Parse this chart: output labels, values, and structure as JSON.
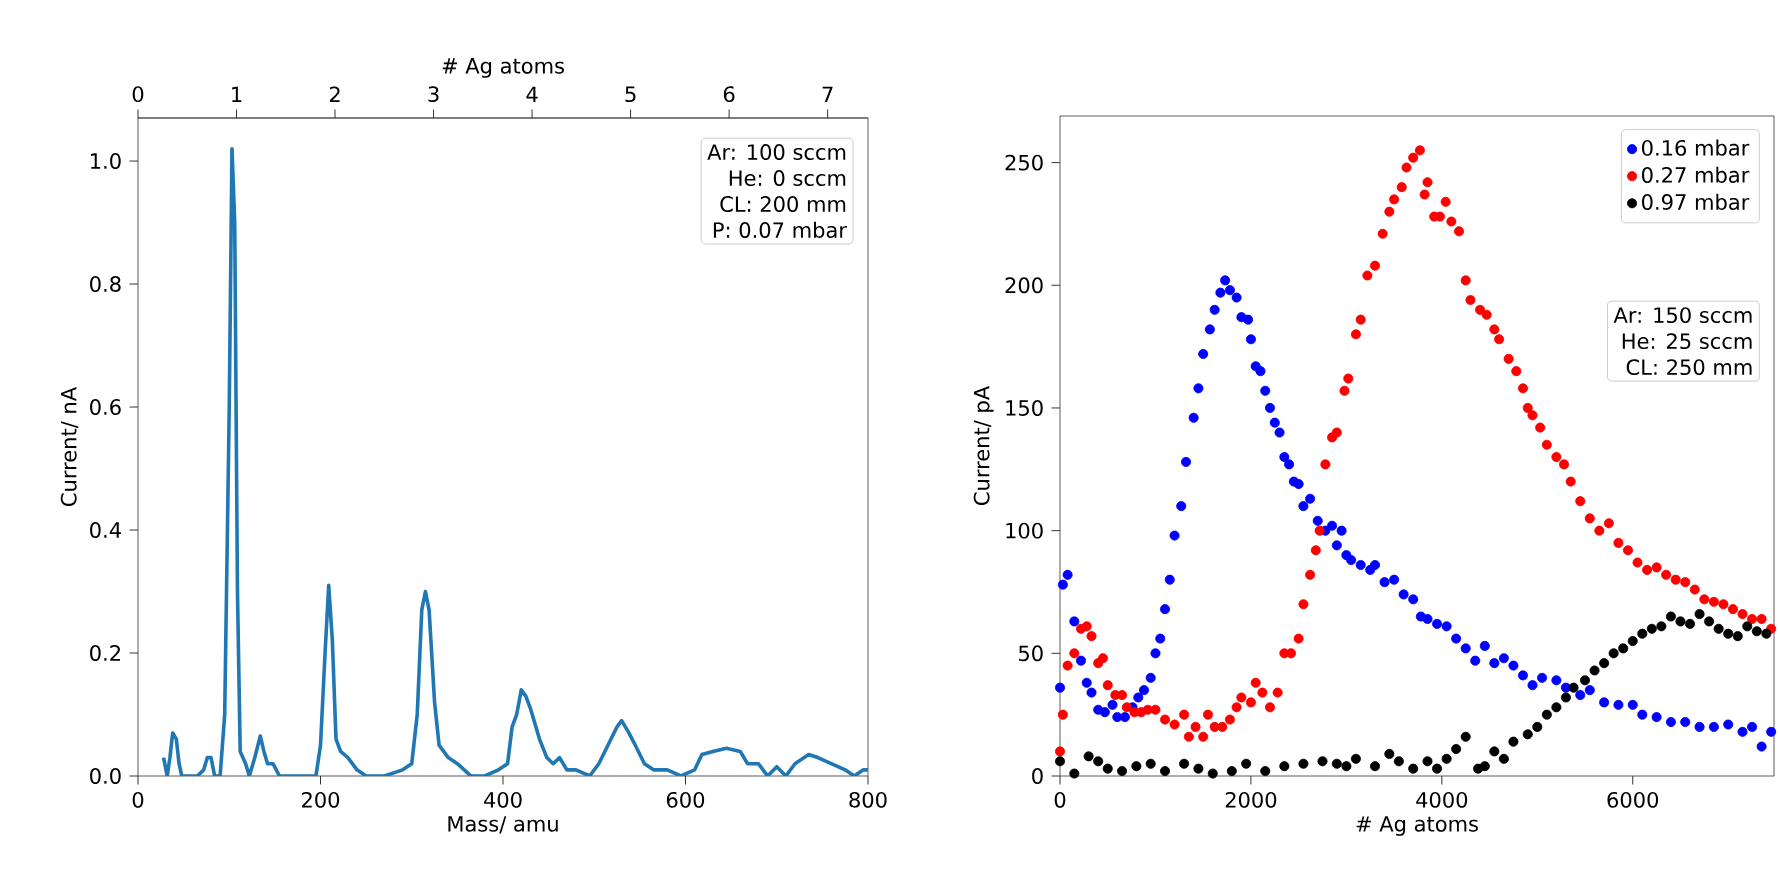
{
  "chart_data": [
    {
      "type": "line",
      "xlabel": "Mass/ amu",
      "ylabel": "Current/ nA",
      "x2label": "# Ag atoms",
      "xlim": [
        0,
        800
      ],
      "ylim": [
        0,
        1.07
      ],
      "x2lim": [
        0,
        7.41
      ],
      "xticks": [
        0,
        200,
        400,
        600,
        800
      ],
      "yticks": [
        {
          "value": 0,
          "label": "0.0"
        },
        {
          "value": 0.2,
          "label": "0.2"
        },
        {
          "value": 0.4,
          "label": "0.4"
        },
        {
          "value": 0.6,
          "label": "0.6"
        },
        {
          "value": 0.8,
          "label": "0.8"
        },
        {
          "value": 1.0,
          "label": "1.0"
        }
      ],
      "x2ticks": [
        0,
        1,
        2,
        3,
        4,
        5,
        6,
        7
      ],
      "annotations": [
        "Ar: 100 sccm",
        "He: 0 sccm",
        "CL: 200 mm",
        "P: 0.07 mbar"
      ],
      "series": [
        {
          "color": "#1f77b4",
          "x": [
            28,
            32,
            35,
            38,
            42,
            45,
            48,
            55,
            65,
            72,
            76,
            80,
            84,
            90,
            95,
            100,
            103,
            106,
            109,
            112,
            118,
            122,
            128,
            134,
            138,
            142,
            148,
            155,
            170,
            185,
            195,
            200,
            205,
            209,
            213,
            217,
            222,
            230,
            240,
            250,
            270,
            290,
            300,
            306,
            311,
            315,
            319,
            325,
            330,
            340,
            350,
            365,
            380,
            395,
            405,
            410,
            415,
            420,
            425,
            430,
            440,
            448,
            455,
            462,
            470,
            480,
            495,
            505,
            515,
            525,
            530,
            538,
            545,
            555,
            565,
            580,
            595,
            610,
            618,
            630,
            645,
            660,
            668,
            680,
            690,
            700,
            710,
            720,
            735,
            745,
            760,
            775,
            785,
            795,
            800
          ],
          "values": [
            0.03,
            0.0,
            0.03,
            0.07,
            0.06,
            0.02,
            0.0,
            0.0,
            0.0,
            0.01,
            0.03,
            0.03,
            0.0,
            0.0,
            0.1,
            0.6,
            1.02,
            0.9,
            0.3,
            0.04,
            0.02,
            0.0,
            0.03,
            0.065,
            0.04,
            0.02,
            0.02,
            0.0,
            0.0,
            0.0,
            0.0,
            0.05,
            0.2,
            0.31,
            0.22,
            0.06,
            0.04,
            0.03,
            0.01,
            0.0,
            0.0,
            0.01,
            0.02,
            0.1,
            0.27,
            0.3,
            0.27,
            0.12,
            0.05,
            0.03,
            0.02,
            0.0,
            0.0,
            0.01,
            0.02,
            0.08,
            0.1,
            0.14,
            0.13,
            0.11,
            0.06,
            0.03,
            0.02,
            0.03,
            0.01,
            0.01,
            0.0,
            0.02,
            0.05,
            0.08,
            0.09,
            0.07,
            0.05,
            0.02,
            0.01,
            0.01,
            0.0,
            0.01,
            0.035,
            0.04,
            0.045,
            0.04,
            0.02,
            0.02,
            0.0,
            0.015,
            0.0,
            0.02,
            0.035,
            0.03,
            0.02,
            0.01,
            0.0,
            0.01,
            0.01
          ]
        }
      ]
    },
    {
      "type": "scatter",
      "xlabel": "# Ag atoms",
      "ylabel": "Current/ pA",
      "xlim": [
        0,
        7480
      ],
      "ylim": [
        0,
        269
      ],
      "xticks": [
        0,
        2000,
        4000,
        6000
      ],
      "yticks": [
        0,
        50,
        100,
        150,
        200,
        250
      ],
      "legend": "top right",
      "annotations": [
        "Ar: 150 sccm",
        "He: 25 sccm",
        "CL: 250 mm"
      ],
      "series": [
        {
          "name": "0.16 mbar",
          "color": "#0000ff",
          "x": [
            0,
            30,
            80,
            150,
            220,
            280,
            330,
            400,
            470,
            550,
            600,
            680,
            760,
            820,
            880,
            950,
            1000,
            1050,
            1100,
            1150,
            1200,
            1270,
            1320,
            1400,
            1450,
            1500,
            1570,
            1620,
            1680,
            1730,
            1780,
            1850,
            1900,
            1970,
            2000,
            2050,
            2100,
            2150,
            2200,
            2250,
            2300,
            2350,
            2400,
            2450,
            2500,
            2550,
            2620,
            2700,
            2780,
            2850,
            2900,
            2950,
            3000,
            3050,
            3150,
            3250,
            3300,
            3400,
            3500,
            3600,
            3700,
            3780,
            3850,
            3950,
            4050,
            4150,
            4250,
            4350,
            4450,
            4550,
            4650,
            4750,
            4850,
            4950,
            5050,
            5200,
            5300,
            5450,
            5550,
            5700,
            5850,
            6000,
            6100,
            6250,
            6400,
            6550,
            6700,
            6850,
            7000,
            7150,
            7250,
            7350,
            7450
          ],
          "values": [
            36,
            78,
            82,
            63,
            47,
            38,
            34,
            27,
            26,
            29,
            24,
            24,
            28,
            32,
            35,
            40,
            50,
            56,
            68,
            80,
            98,
            110,
            128,
            146,
            158,
            172,
            182,
            190,
            197,
            202,
            198,
            195,
            187,
            186,
            178,
            167,
            165,
            157,
            150,
            144,
            140,
            130,
            127,
            120,
            119,
            110,
            113,
            104,
            100,
            102,
            94,
            100,
            90,
            88,
            86,
            84,
            86,
            79,
            80,
            74,
            72,
            65,
            64,
            62,
            61,
            56,
            52,
            47,
            53,
            46,
            48,
            45,
            41,
            37,
            40,
            39,
            36,
            33,
            35,
            30,
            29,
            29,
            25,
            24,
            22,
            22,
            20,
            20,
            21,
            18,
            20,
            12,
            18
          ]
        },
        {
          "name": "0.27 mbar",
          "color": "#ff0000",
          "x": [
            0,
            30,
            80,
            150,
            220,
            280,
            330,
            400,
            450,
            500,
            580,
            650,
            700,
            780,
            850,
            920,
            1000,
            1100,
            1200,
            1300,
            1350,
            1420,
            1500,
            1550,
            1620,
            1700,
            1780,
            1850,
            1900,
            2000,
            2050,
            2120,
            2200,
            2280,
            2350,
            2420,
            2500,
            2550,
            2620,
            2680,
            2720,
            2780,
            2850,
            2900,
            2980,
            3020,
            3100,
            3150,
            3220,
            3300,
            3380,
            3450,
            3500,
            3580,
            3630,
            3700,
            3770,
            3820,
            3850,
            3920,
            3980,
            4040,
            4100,
            4180,
            4250,
            4300,
            4400,
            4470,
            4550,
            4600,
            4700,
            4780,
            4850,
            4900,
            4950,
            5030,
            5100,
            5200,
            5280,
            5350,
            5450,
            5550,
            5650,
            5750,
            5850,
            5950,
            6050,
            6150,
            6250,
            6350,
            6450,
            6550,
            6650,
            6750,
            6850,
            6950,
            7050,
            7150,
            7250,
            7350,
            7450
          ],
          "values": [
            10,
            25,
            45,
            50,
            60,
            61,
            57,
            46,
            48,
            37,
            33,
            33,
            28,
            26,
            26,
            27,
            27,
            23,
            21,
            25,
            16,
            20,
            16,
            25,
            20,
            20,
            23,
            28,
            32,
            30,
            38,
            34,
            28,
            34,
            50,
            50,
            56,
            70,
            82,
            92,
            100,
            127,
            138,
            140,
            157,
            162,
            180,
            186,
            204,
            208,
            221,
            230,
            235,
            240,
            248,
            252,
            255,
            237,
            242,
            228,
            228,
            234,
            226,
            222,
            202,
            194,
            190,
            188,
            182,
            178,
            170,
            165,
            158,
            150,
            147,
            142,
            135,
            130,
            127,
            120,
            112,
            105,
            100,
            103,
            95,
            92,
            87,
            84,
            85,
            82,
            80,
            79,
            76,
            72,
            71,
            70,
            68,
            66,
            64,
            64,
            60
          ]
        },
        {
          "name": "0.97 mbar",
          "color": "#000000",
          "x": [
            0,
            150,
            300,
            400,
            500,
            650,
            800,
            950,
            1100,
            1300,
            1450,
            1600,
            1800,
            1950,
            2150,
            2350,
            2550,
            2750,
            2900,
            3000,
            3100,
            3300,
            3450,
            3550,
            3700,
            3850,
            3950,
            4050,
            4150,
            4250,
            4380,
            4450,
            4550,
            4650,
            4750,
            4900,
            5000,
            5100,
            5200,
            5300,
            5380,
            5500,
            5600,
            5700,
            5800,
            5900,
            6000,
            6100,
            6200,
            6300,
            6400,
            6500,
            6600,
            6700,
            6800,
            6900,
            7000,
            7100,
            7200,
            7300,
            7400
          ],
          "values": [
            6,
            1,
            8,
            6,
            3,
            2,
            4,
            5,
            2,
            5,
            3,
            1,
            2,
            5,
            2,
            4,
            5,
            6,
            5,
            4,
            7,
            4,
            9,
            6,
            3,
            6,
            3,
            7,
            11,
            16,
            3,
            4,
            10,
            7,
            14,
            17,
            20,
            25,
            28,
            32,
            36,
            39,
            43,
            46,
            50,
            52,
            55,
            58,
            60,
            61,
            65,
            63,
            62,
            66,
            63,
            60,
            58,
            57,
            61,
            59,
            58
          ]
        }
      ]
    }
  ]
}
